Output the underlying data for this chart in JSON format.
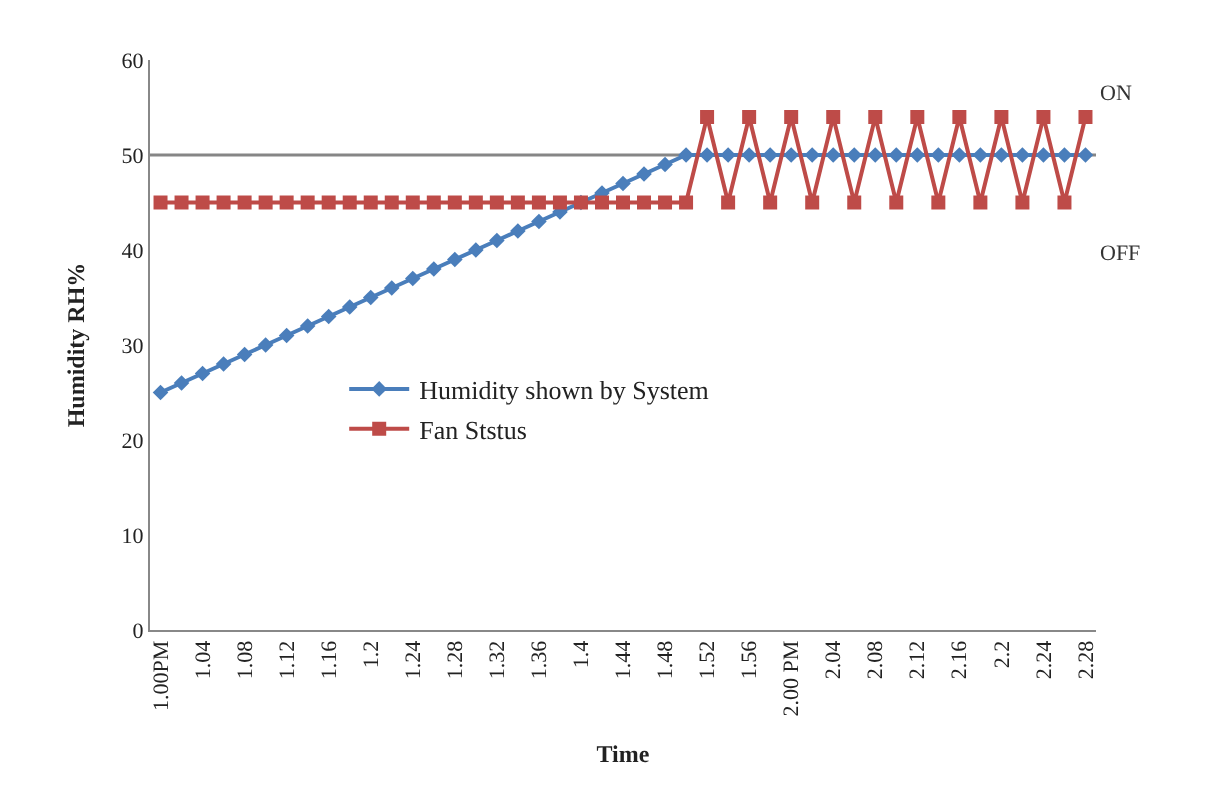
{
  "chart_data": {
    "type": "line",
    "xlabel": "Time",
    "ylabel": "Humidity RH%",
    "categories": [
      "1.00PM",
      null,
      "1.04",
      null,
      "1.08",
      null,
      "1.12",
      null,
      "1.16",
      null,
      "1.2",
      null,
      "1.24",
      null,
      "1.28",
      null,
      "1.32",
      null,
      "1.36",
      null,
      "1.4",
      null,
      "1.44",
      null,
      "1.48",
      null,
      "1.52",
      null,
      "1.56",
      null,
      "2.00 PM",
      null,
      "2.04",
      null,
      "2.08",
      null,
      "2.12",
      null,
      "2.16",
      null,
      "2.2",
      null,
      "2.24",
      null,
      "2.28"
    ],
    "series": [
      {
        "name": "Humidity shown by System",
        "color": "#4a7ebb",
        "marker": "diamond",
        "values": [
          25,
          26,
          27,
          28,
          29,
          30,
          31,
          32,
          33,
          34,
          35,
          36,
          37,
          38,
          39,
          40,
          41,
          42,
          43,
          44,
          45,
          46,
          47,
          48,
          49,
          50,
          50,
          50,
          50,
          50,
          50,
          50,
          50,
          50,
          50,
          50,
          50,
          50,
          50,
          50,
          50,
          50,
          50,
          50,
          50
        ]
      },
      {
        "name": "Fan Ststus",
        "color": "#be4b48",
        "marker": "square",
        "values": [
          45,
          45,
          45,
          45,
          45,
          45,
          45,
          45,
          45,
          45,
          45,
          45,
          45,
          45,
          45,
          45,
          45,
          45,
          45,
          45,
          45,
          45,
          45,
          45,
          45,
          45,
          54,
          45,
          54,
          45,
          54,
          45,
          54,
          45,
          54,
          45,
          54,
          45,
          54,
          45,
          54,
          45,
          54,
          45,
          54
        ]
      }
    ],
    "ylim": [
      0,
      60
    ],
    "yticks": [
      0,
      10,
      20,
      30,
      40,
      50,
      60
    ],
    "ref_lines": [
      {
        "axis": "y",
        "value": 50,
        "color": "#868686"
      }
    ],
    "annotations": [
      "ON",
      "OFF"
    ],
    "legend": "bottom left"
  }
}
